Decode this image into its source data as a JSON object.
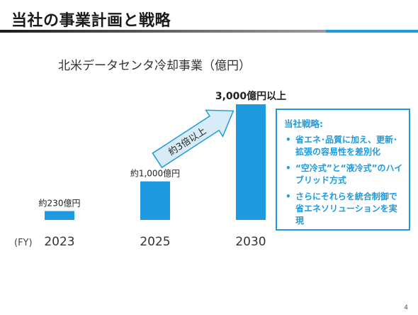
{
  "slide": {
    "title": "当社の事業計画と戦略",
    "page_number": "4"
  },
  "chart_data": {
    "type": "bar",
    "title": "北米データセンタ冷却事業（億円）",
    "x_axis_label": "(FY)",
    "categories": [
      "2023",
      "2025",
      "2030"
    ],
    "values": [
      230,
      1000,
      3000
    ],
    "data_labels": [
      "約230億円",
      "約1,000億円",
      "3,000億円以上"
    ],
    "ylim": [
      0,
      3000
    ],
    "bar_color": "#1e9ae0",
    "grid": false,
    "annotation": {
      "label": "約3倍以上",
      "from": "2025",
      "to": "2030"
    }
  },
  "strategy": {
    "heading": "当社戦略:",
    "items": [
      "省エネ･品質に加え、更新･拡張の容易性を差別化",
      "“空冷式”と“液冷式”のハイブリッド方式",
      "さらにそれらを統合制御で省エネソリューションを実現"
    ]
  },
  "colors": {
    "accent": "#1e9ae0",
    "arrow_fill": "#d7ecf7",
    "arrow_stroke": "#1e9ae0"
  }
}
